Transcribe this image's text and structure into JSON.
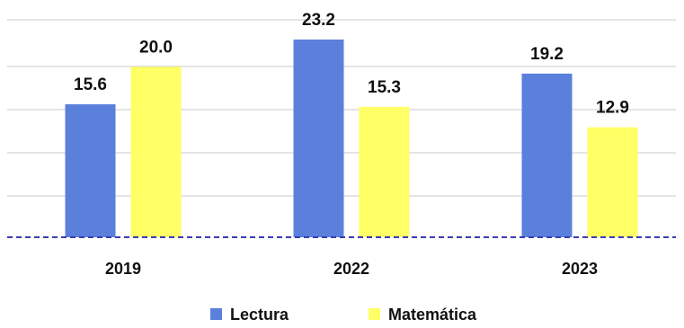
{
  "chart_data": {
    "type": "bar",
    "categories": [
      "2019",
      "2022",
      "2023"
    ],
    "series": [
      {
        "name": "Lectura",
        "values": [
          15.6,
          23.2,
          19.2
        ],
        "color": "#5B80DC"
      },
      {
        "name": "Matemática",
        "values": [
          20.0,
          15.3,
          12.9
        ],
        "color": "#FFFF66"
      }
    ],
    "title": "",
    "xlabel": "",
    "ylabel": "",
    "ylim": [
      0,
      23.2
    ],
    "grid": true,
    "legend": "bottom",
    "baseline_color": "#3B3BB3",
    "grid_color": "#C8C8C8"
  }
}
